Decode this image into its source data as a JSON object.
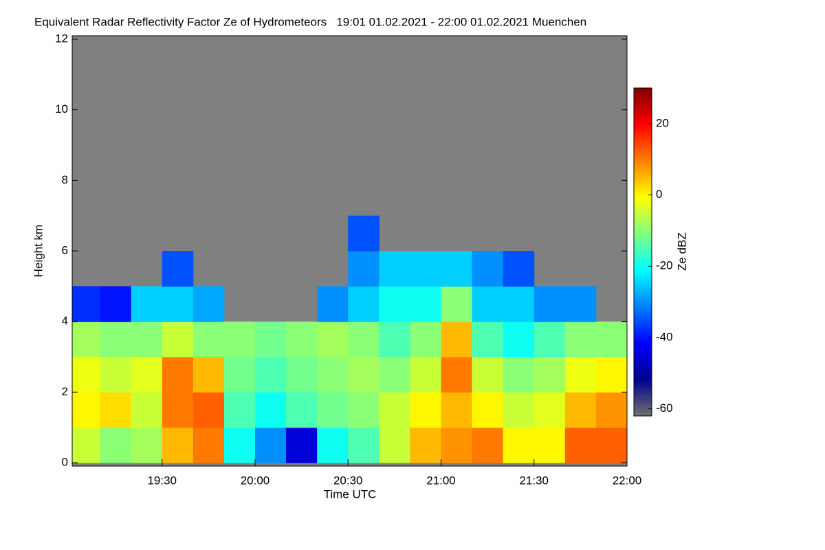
{
  "chart_data": {
    "type": "heatmap",
    "title": "Equivalent Radar Reflectivity Factor Ze of Hydrometeors   19:01 01.02.2021 - 22:00 01.02.2021 Muenchen",
    "x_label": "Time UTC",
    "y_label": "Height km",
    "colorbar_label": "Ze dBZ",
    "xlim": [
      19.0167,
      22.0
    ],
    "xticks": [
      {
        "value": 19.5,
        "label": "19:30"
      },
      {
        "value": 20.0,
        "label": "20:00"
      },
      {
        "value": 20.5,
        "label": "20:30"
      },
      {
        "value": 21.0,
        "label": "21:00"
      },
      {
        "value": 21.5,
        "label": "21:30"
      },
      {
        "value": 22.0,
        "label": "22:00"
      }
    ],
    "ylim": [
      0,
      12
    ],
    "yticks": [
      0,
      2,
      4,
      6,
      8,
      10,
      12
    ],
    "clim": [
      -62,
      30
    ],
    "cticks": [
      -60,
      -40,
      -20,
      0,
      20
    ],
    "background_color": "#808080",
    "colormap": [
      "#707070",
      "#00008f",
      "#0000ff",
      "#0080ff",
      "#00ffff",
      "#80ff80",
      "#ffff00",
      "#ff8000",
      "#ff0000",
      "#800000"
    ],
    "x_bins": [
      19.0167,
      19.1667,
      19.3333,
      19.5,
      19.6667,
      19.8333,
      20.0,
      20.1667,
      20.3333,
      20.5,
      20.6667,
      20.8333,
      21.0,
      21.1667,
      21.3333,
      21.5,
      21.6667,
      21.8333,
      22.0
    ],
    "y_bins": [
      0,
      1,
      2,
      3,
      4,
      5,
      6,
      7
    ],
    "z": [
      [
        -5,
        -10,
        -8,
        5,
        10,
        -20,
        -30,
        -45,
        -20,
        -15,
        -5,
        5,
        8,
        10,
        0,
        0,
        12,
        12
      ],
      [
        0,
        2,
        -5,
        10,
        12,
        -15,
        -20,
        -15,
        -12,
        -10,
        -5,
        0,
        5,
        0,
        -5,
        -3,
        5,
        8
      ],
      [
        -2,
        -5,
        -3,
        10,
        5,
        -12,
        -15,
        -12,
        -10,
        -8,
        -10,
        -5,
        10,
        -5,
        -10,
        -8,
        -2,
        0
      ],
      [
        -8,
        -10,
        -10,
        -5,
        -10,
        -10,
        -12,
        -10,
        -8,
        -10,
        -15,
        -10,
        5,
        -15,
        -20,
        -15,
        -10,
        -10
      ],
      [
        -38,
        -40,
        -25,
        -25,
        -28,
        null,
        null,
        null,
        -30,
        -25,
        -20,
        -20,
        -10,
        -25,
        -25,
        -30,
        -30,
        null
      ],
      [
        null,
        null,
        null,
        -35,
        null,
        null,
        null,
        null,
        null,
        -30,
        -25,
        -25,
        -25,
        -30,
        -35,
        null,
        null,
        null
      ],
      [
        null,
        null,
        null,
        null,
        null,
        null,
        null,
        null,
        null,
        -35,
        null,
        null,
        null,
        null,
        null,
        null,
        null,
        null
      ]
    ]
  }
}
